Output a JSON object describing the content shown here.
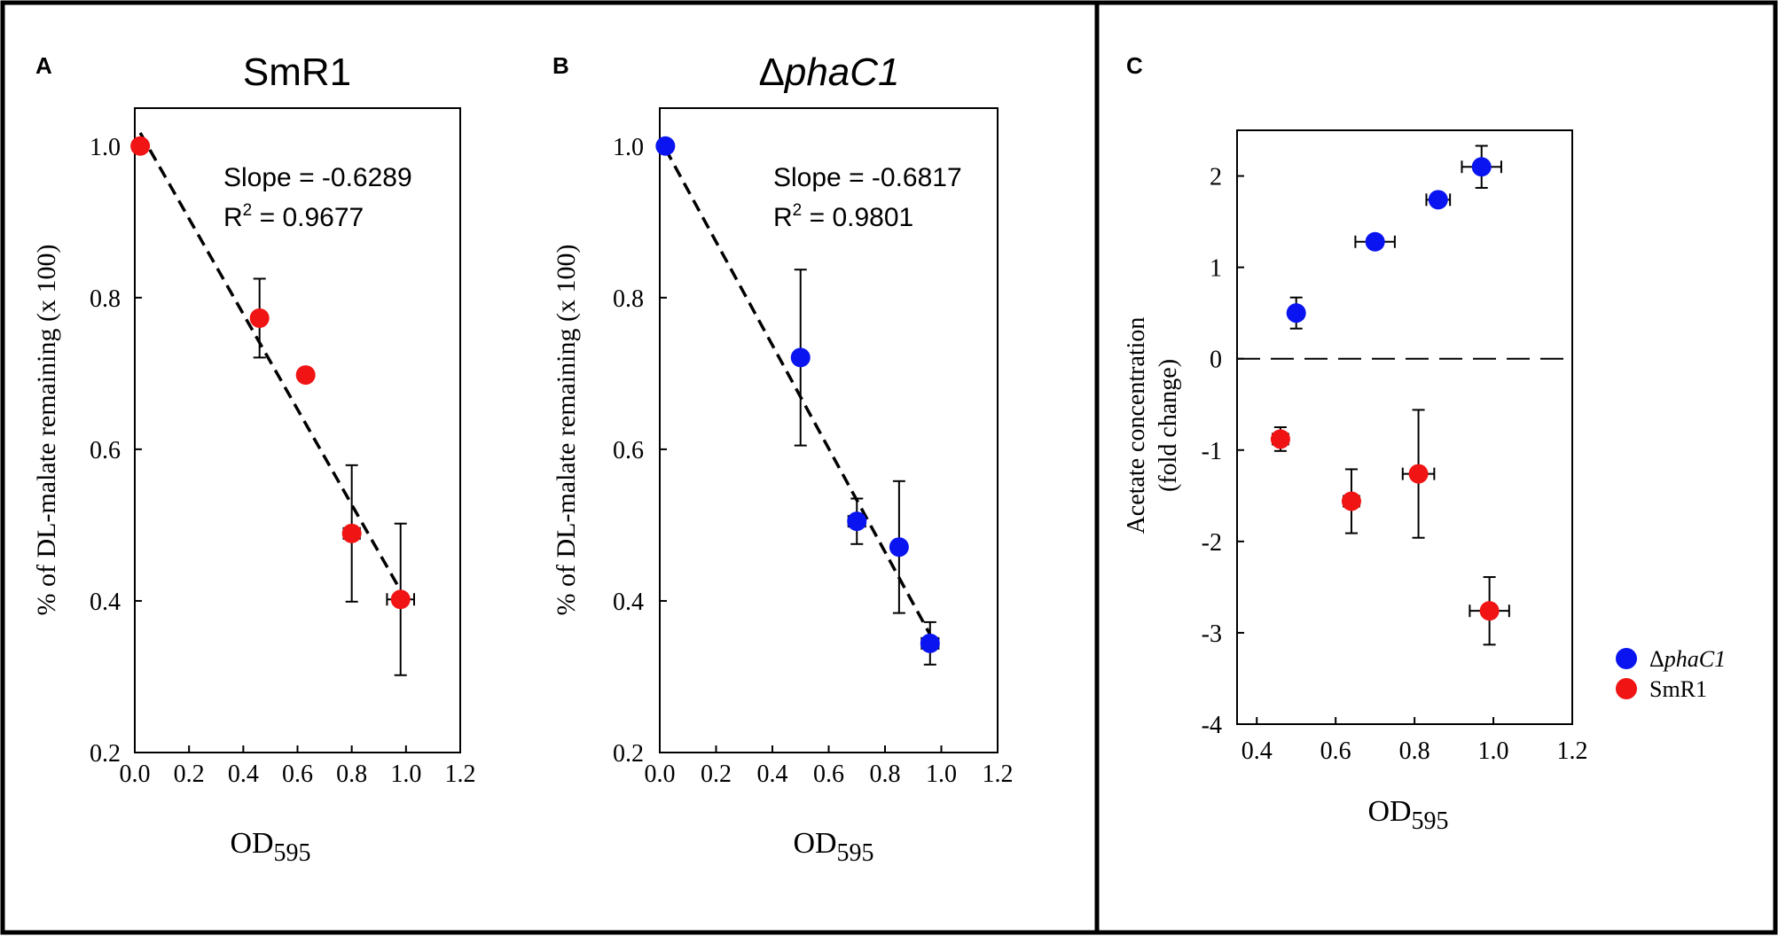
{
  "colors": {
    "blue": "#0a14f0",
    "red": "#f01414",
    "frame": "#000000"
  },
  "chart_data": [
    {
      "type": "scatter",
      "panel_letter": "A",
      "title": "SmR1",
      "xlabel_main": "OD",
      "xlabel_sub": "595",
      "ylabel": "% of DL-malate remaining (x 100)",
      "xlim": [
        0.0,
        1.2
      ],
      "ylim": [
        0.2,
        1.05
      ],
      "xticks": [
        "0.0",
        "0.2",
        "0.4",
        "0.6",
        "0.8",
        "1.0",
        "1.2"
      ],
      "yticks": [
        "0.2",
        "0.4",
        "0.6",
        "0.8",
        "1.0"
      ],
      "grid": false,
      "annotation_slope": "Slope = -0.6289",
      "annotation_r2_prefix": "R",
      "annotation_r2_exp": "2",
      "annotation_r2_value": " = 0.9677",
      "trendline": {
        "slope": -0.6289,
        "intercept": 1.03,
        "x_start": 0.02,
        "x_end": 1.0
      },
      "series": [
        {
          "name": "SmR1",
          "color": "red",
          "points": [
            {
              "x": 0.02,
              "y": 1.0,
              "xerr": 0,
              "yerr": 0
            },
            {
              "x": 0.46,
              "y": 0.773,
              "xerr": 0.02,
              "yerr": 0.052
            },
            {
              "x": 0.63,
              "y": 0.698,
              "xerr": 0.02,
              "yerr": 0
            },
            {
              "x": 0.8,
              "y": 0.489,
              "xerr": 0.03,
              "yerr": 0.09
            },
            {
              "x": 0.98,
              "y": 0.402,
              "xerr": 0.05,
              "yerr": 0.1
            }
          ]
        }
      ]
    },
    {
      "type": "scatter",
      "panel_letter": "B",
      "title_prefix": "Δ",
      "title_italic": "phaC1",
      "xlabel_main": "OD",
      "xlabel_sub": "595",
      "ylabel": "% of DL-malate remaining (x 100)",
      "xlim": [
        0.0,
        1.2
      ],
      "ylim": [
        0.2,
        1.05
      ],
      "xticks": [
        "0.0",
        "0.2",
        "0.4",
        "0.6",
        "0.8",
        "1.0",
        "1.2"
      ],
      "yticks": [
        "0.2",
        "0.4",
        "0.6",
        "0.8",
        "1.0"
      ],
      "grid": false,
      "annotation_slope": "Slope = -0.6817",
      "annotation_r2_prefix": "R",
      "annotation_r2_exp": "2",
      "annotation_r2_value": " = 0.9801",
      "trendline": {
        "slope": -0.6817,
        "intercept": 1.01,
        "x_start": 0.02,
        "x_end": 0.97
      },
      "series": [
        {
          "name": "ΔphaC1",
          "color": "blue",
          "points": [
            {
              "x": 0.02,
              "y": 1.0,
              "xerr": 0,
              "yerr": 0
            },
            {
              "x": 0.5,
              "y": 0.721,
              "xerr": 0.01,
              "yerr": 0.116
            },
            {
              "x": 0.7,
              "y": 0.505,
              "xerr": 0.03,
              "yerr": 0.03
            },
            {
              "x": 0.85,
              "y": 0.471,
              "xerr": 0.02,
              "yerr": 0.087
            },
            {
              "x": 0.96,
              "y": 0.344,
              "xerr": 0.03,
              "yerr": 0.028
            }
          ]
        }
      ]
    },
    {
      "type": "scatter",
      "panel_letter": "C",
      "xlabel_main": "OD",
      "xlabel_sub": "595",
      "ylabel_line1": "Acetate concentration",
      "ylabel_line2": "(fold change)",
      "xlim": [
        0.35,
        1.2
      ],
      "ylim": [
        -4,
        2.5
      ],
      "xticks": [
        "0.4",
        "0.6",
        "0.8",
        "1.0",
        "1.2"
      ],
      "yticks": [
        "-4",
        "-3",
        "-2",
        "-1",
        "0",
        "1",
        "2"
      ],
      "grid": false,
      "reference_line_y": 0,
      "legend_position": "right",
      "legend": [
        {
          "label_prefix": "Δ",
          "label_italic": "phaC1",
          "color": "blue"
        },
        {
          "label": "SmR1",
          "color": "red"
        }
      ],
      "series": [
        {
          "name": "ΔphaC1",
          "color": "blue",
          "points": [
            {
              "x": 0.5,
              "y": 0.5,
              "xerr": 0.01,
              "yerr": 0.17
            },
            {
              "x": 0.7,
              "y": 1.28,
              "xerr": 0.05,
              "yerr": 0
            },
            {
              "x": 0.86,
              "y": 1.74,
              "xerr": 0.03,
              "yerr": 0
            },
            {
              "x": 0.97,
              "y": 2.1,
              "xerr": 0.05,
              "yerr": 0.23
            }
          ]
        },
        {
          "name": "SmR1",
          "color": "red",
          "points": [
            {
              "x": 0.46,
              "y": -0.88,
              "xerr": 0.02,
              "yerr": 0.13
            },
            {
              "x": 0.64,
              "y": -1.56,
              "xerr": 0.02,
              "yerr": 0.35
            },
            {
              "x": 0.81,
              "y": -1.26,
              "xerr": 0.04,
              "yerr": 0.7
            },
            {
              "x": 0.99,
              "y": -2.76,
              "xerr": 0.05,
              "yerr": 0.37
            }
          ]
        }
      ]
    }
  ]
}
